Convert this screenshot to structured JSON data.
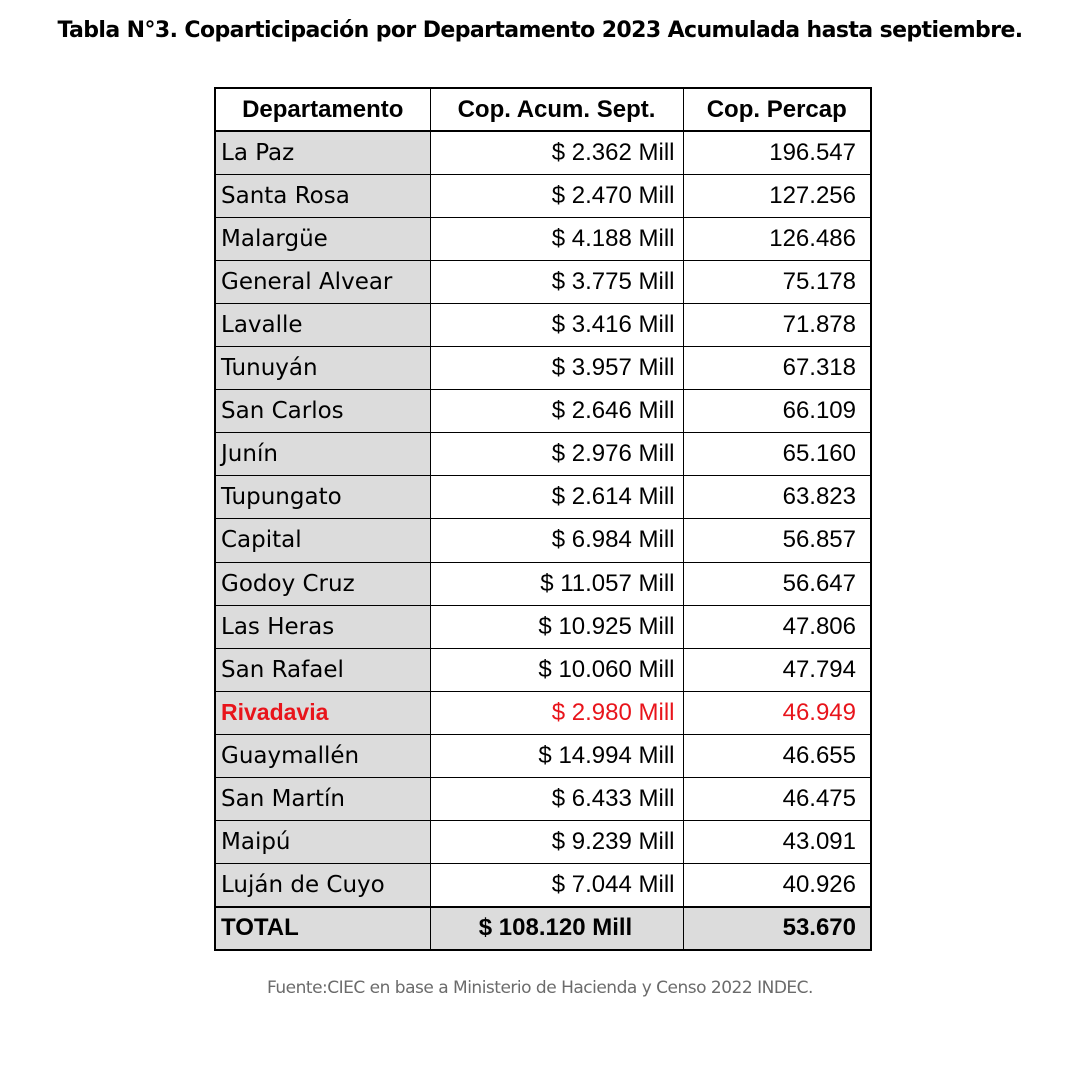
{
  "title": "Tabla N°3. Coparticipación por Departamento 2023 Acumulada hasta septiembre.",
  "table": {
    "headers": [
      "Departamento",
      "Cop. Acum. Sept.",
      "Cop. Percap"
    ],
    "rows": [
      {
        "dep": "La Paz",
        "acum": "$ 2.362 Mill",
        "percap": "196.547"
      },
      {
        "dep": "Santa Rosa",
        "acum": "$ 2.470 Mill",
        "percap": "127.256"
      },
      {
        "dep": "Malargüe",
        "acum": "$ 4.188 Mill",
        "percap": "126.486"
      },
      {
        "dep": "General Alvear",
        "acum": "$ 3.775 Mill",
        "percap": "75.178"
      },
      {
        "dep": "Lavalle",
        "acum": "$ 3.416 Mill",
        "percap": "71.878"
      },
      {
        "dep": "Tunuyán",
        "acum": "$ 3.957 Mill",
        "percap": "67.318"
      },
      {
        "dep": "San Carlos",
        "acum": "$ 2.646 Mill",
        "percap": "66.109"
      },
      {
        "dep": "Junín",
        "acum": "$ 2.976 Mill",
        "percap": "65.160"
      },
      {
        "dep": "Tupungato",
        "acum": "$ 2.614 Mill",
        "percap": "63.823"
      },
      {
        "dep": "Capital",
        "acum": "$ 6.984 Mill",
        "percap": "56.857"
      },
      {
        "dep": "Godoy Cruz",
        "acum": "$ 11.057 Mill",
        "percap": "56.647"
      },
      {
        "dep": "Las Heras",
        "acum": "$ 10.925 Mill",
        "percap": "47.806"
      },
      {
        "dep": "San Rafael",
        "acum": "$ 10.060 Mill",
        "percap": "47.794"
      },
      {
        "dep": "Rivadavia",
        "acum": "$ 2.980 Mill",
        "percap": "46.949",
        "highlight": true
      },
      {
        "dep": "Guaymallén",
        "acum": "$ 14.994 Mill",
        "percap": "46.655"
      },
      {
        "dep": "San Martín",
        "acum": "$ 6.433 Mill",
        "percap": "46.475"
      },
      {
        "dep": "Maipú",
        "acum": "$ 9.239 Mill",
        "percap": "43.091"
      },
      {
        "dep": "Luján de Cuyo",
        "acum": "$ 7.044 Mill",
        "percap": "40.926"
      }
    ],
    "total": {
      "dep": "TOTAL",
      "acum": "$ 108.120 Mill",
      "percap": "53.670"
    }
  },
  "colors": {
    "highlight": "#e8141b",
    "cell_gray": "#dcdcdc"
  },
  "source": "Fuente:CIEC en base a Ministerio de Hacienda y Censo 2022 INDEC."
}
